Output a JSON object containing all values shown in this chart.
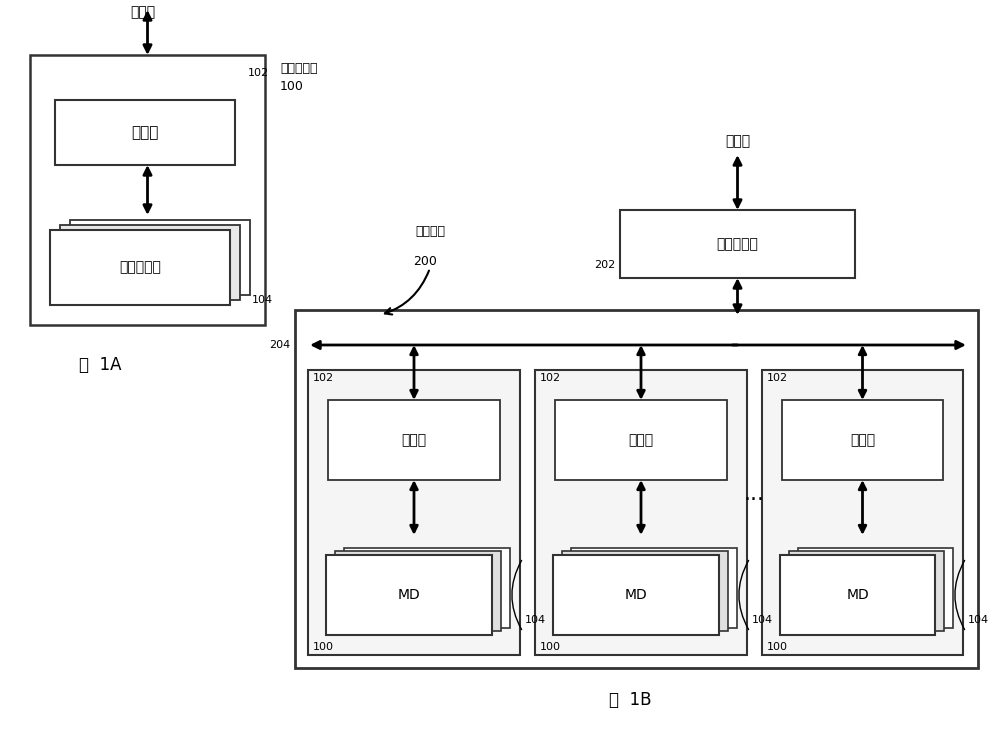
{
  "bg_color": "#ffffff",
  "fig_width": 10.0,
  "fig_height": 7.39,
  "dpi": 100,
  "text_to_host_1a": "到主机",
  "text_to_host_1b": "到主机",
  "text_storage_system": "存储器系统",
  "text_controller": "控制器",
  "text_memory_die": "存储器裸芯",
  "text_storage_controller": "储存控制器",
  "text_storage_module": "储存模块",
  "text_md": "MD",
  "text_dots": "···",
  "label_100": "100",
  "label_102": "102",
  "label_104": "104",
  "label_200": "200",
  "label_202": "202",
  "label_204": "204",
  "label_1a": "图  1A",
  "label_1b": "图  1B"
}
